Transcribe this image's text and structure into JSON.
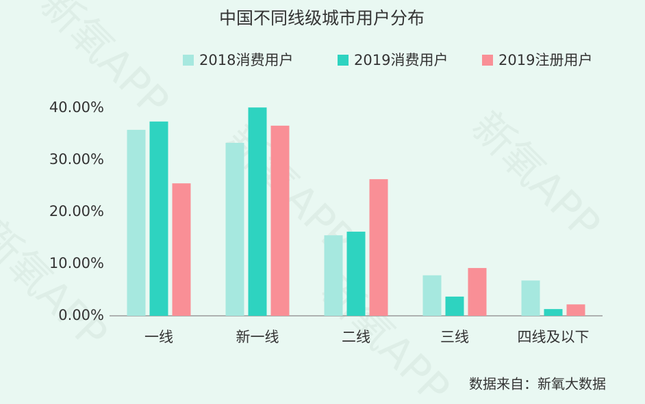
{
  "chart_data": {
    "type": "bar",
    "title": "中国不同线级城市用户分布",
    "categories": [
      "一线",
      "新一线",
      "二线",
      "三线",
      "四线及以下"
    ],
    "series": [
      {
        "name": "2018消费用户",
        "color": "#a6e8df",
        "values": [
          35.8,
          33.3,
          15.5,
          7.8,
          6.8
        ]
      },
      {
        "name": "2019消费用户",
        "color": "#2ed3c0",
        "values": [
          37.4,
          40.1,
          16.2,
          3.7,
          1.3
        ]
      },
      {
        "name": "2019注册用户",
        "color": "#f98f96",
        "values": [
          25.5,
          36.6,
          26.3,
          9.2,
          2.2
        ]
      }
    ],
    "ylim": [
      0,
      42
    ],
    "yticks": [
      {
        "value": 0,
        "label": "0.00%"
      },
      {
        "value": 10,
        "label": "10.00%"
      },
      {
        "value": 20,
        "label": "20.00%"
      },
      {
        "value": 30,
        "label": "30.00%"
      },
      {
        "value": 40,
        "label": "40.00%"
      }
    ],
    "grid": false,
    "legend": "top",
    "source": "数据来自：新氧大数据",
    "watermark": "新氧APP"
  }
}
